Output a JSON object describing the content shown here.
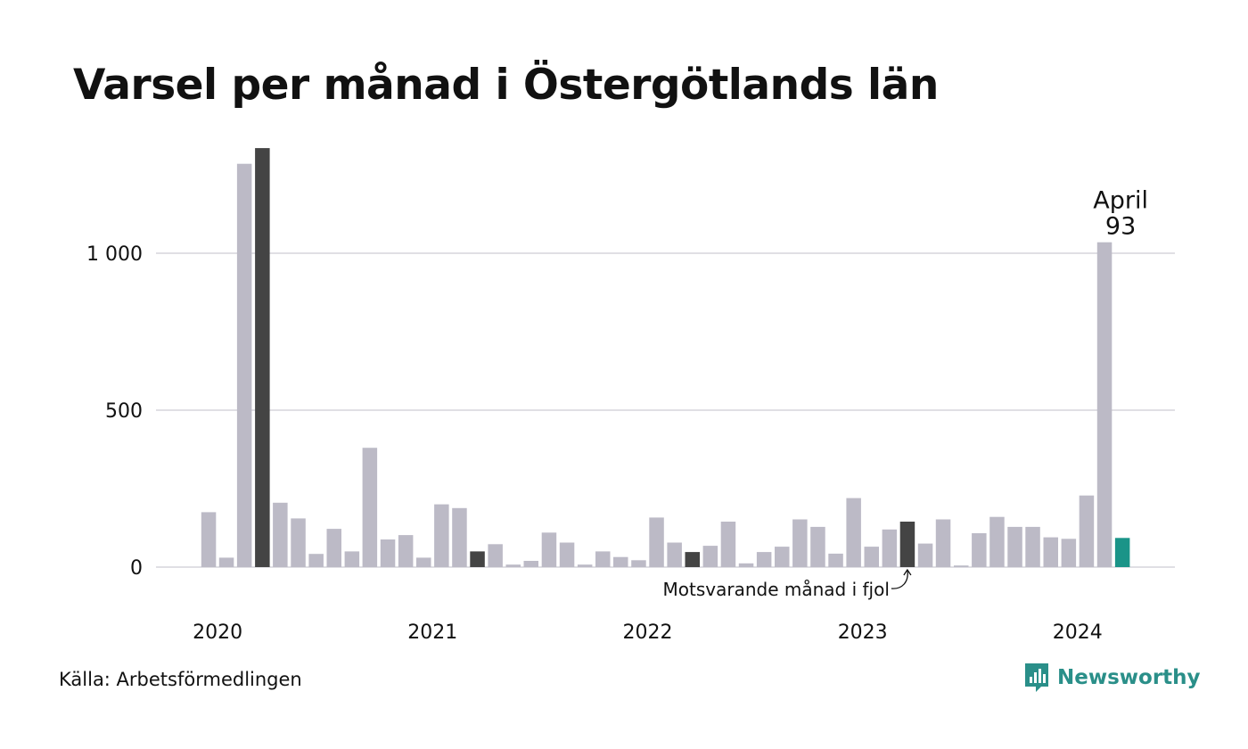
{
  "header": {
    "title": "Varsel per månad i Östergötlands län"
  },
  "footer": {
    "source": "Källa: Arbetsförmedlingen",
    "brand": "Newsworthy"
  },
  "colors": {
    "bar": "#bcbac6",
    "highlight": "#444444",
    "current": "#1a9488",
    "grid": "#e0dfe4",
    "text": "#111111",
    "brand": "#2a8f89"
  },
  "chart_data": {
    "type": "bar",
    "title": "Varsel per månad i Östergötlands län",
    "xlabel": "",
    "ylabel": "",
    "ylim": [
      0,
      1350
    ],
    "yticks": [
      0,
      500,
      1000
    ],
    "ytick_labels": [
      "0",
      "500",
      "1 000"
    ],
    "x_start": "2020-01",
    "year_labels": [
      "2020",
      "2021",
      "2022",
      "2023",
      "2024"
    ],
    "values": [
      175,
      30,
      1285,
      1335,
      205,
      155,
      42,
      122,
      50,
      380,
      88,
      102,
      30,
      200,
      188,
      50,
      73,
      8,
      20,
      110,
      78,
      8,
      50,
      32,
      22,
      158,
      78,
      48,
      68,
      145,
      12,
      48,
      65,
      152,
      128,
      43,
      220,
      65,
      120,
      145,
      75,
      152,
      5,
      108,
      160,
      128,
      128,
      95,
      90,
      228,
      1035,
      93
    ],
    "highlight_indices": [
      3,
      15,
      27,
      39
    ],
    "current_index": 51,
    "annotations": {
      "current_label": "April",
      "current_value": "93",
      "previous_year_label": "Motsvarande månad i fjol"
    }
  }
}
